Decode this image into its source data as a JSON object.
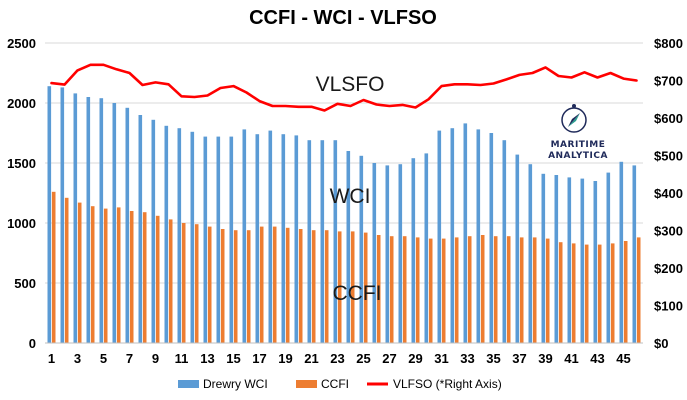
{
  "chart_data": {
    "type": "bar+line",
    "title": "CCFI - WCI - VLFSO",
    "categories": [
      1,
      2,
      3,
      4,
      5,
      6,
      7,
      8,
      9,
      10,
      11,
      12,
      13,
      14,
      15,
      16,
      17,
      18,
      19,
      20,
      21,
      22,
      23,
      24,
      25,
      26,
      27,
      28,
      29,
      30,
      31,
      32,
      33,
      34,
      35,
      36,
      37,
      38,
      39,
      40,
      41,
      42,
      43,
      44,
      45,
      46
    ],
    "x_tick_labels": [
      "1",
      "3",
      "5",
      "7",
      "9",
      "11",
      "13",
      "15",
      "17",
      "19",
      "21",
      "23",
      "25",
      "27",
      "29",
      "31",
      "33",
      "35",
      "37",
      "39",
      "41",
      "43",
      "45"
    ],
    "left_axis": {
      "ylim": [
        0,
        2500
      ],
      "ticks": [
        "0",
        "500",
        "1000",
        "1500",
        "2000",
        "2500"
      ]
    },
    "right_axis": {
      "ylim": [
        0,
        800
      ],
      "ticks": [
        "$0",
        "$100",
        "$200",
        "$300",
        "$400",
        "$500",
        "$600",
        "$700",
        "$800"
      ]
    },
    "series": [
      {
        "name": "Drewry WCI",
        "kind": "bar",
        "axis": "left",
        "color": "#5b9bd5",
        "values": [
          2140,
          2130,
          2080,
          2050,
          2040,
          2000,
          1960,
          1900,
          1860,
          1810,
          1790,
          1760,
          1720,
          1720,
          1720,
          1780,
          1740,
          1770,
          1740,
          1730,
          1690,
          1690,
          1690,
          1600,
          1560,
          1500,
          1480,
          1490,
          1540,
          1580,
          1770,
          1790,
          1830,
          1780,
          1750,
          1690,
          1570,
          1490,
          1410,
          1400,
          1380,
          1370,
          1350,
          1420,
          1510,
          1480
        ]
      },
      {
        "name": "CCFI",
        "kind": "bar",
        "axis": "left",
        "color": "#ed7d31",
        "values": [
          1260,
          1210,
          1170,
          1140,
          1120,
          1130,
          1100,
          1090,
          1060,
          1030,
          1000,
          990,
          970,
          950,
          940,
          940,
          970,
          970,
          960,
          950,
          940,
          940,
          930,
          930,
          920,
          900,
          890,
          890,
          880,
          870,
          870,
          880,
          890,
          900,
          890,
          890,
          880,
          880,
          870,
          840,
          830,
          820,
          820,
          830,
          850,
          880
        ]
      },
      {
        "name": "VLFSO (*Right Axis)",
        "kind": "line",
        "axis": "right",
        "color": "#ff0000",
        "values": [
          693,
          689,
          727,
          742,
          742,
          730,
          720,
          688,
          695,
          690,
          658,
          656,
          660,
          680,
          685,
          668,
          645,
          632,
          632,
          630,
          630,
          620,
          638,
          632,
          648,
          636,
          632,
          635,
          628,
          650,
          685,
          690,
          690,
          688,
          692,
          703,
          715,
          720,
          735,
          712,
          708,
          722,
          708,
          720,
          705,
          700
        ]
      }
    ],
    "annotations": [
      "VLSFO",
      "WCI",
      "CCFI"
    ],
    "logo": {
      "line1": "MARITIME",
      "line2": "ANALYTICA"
    }
  }
}
